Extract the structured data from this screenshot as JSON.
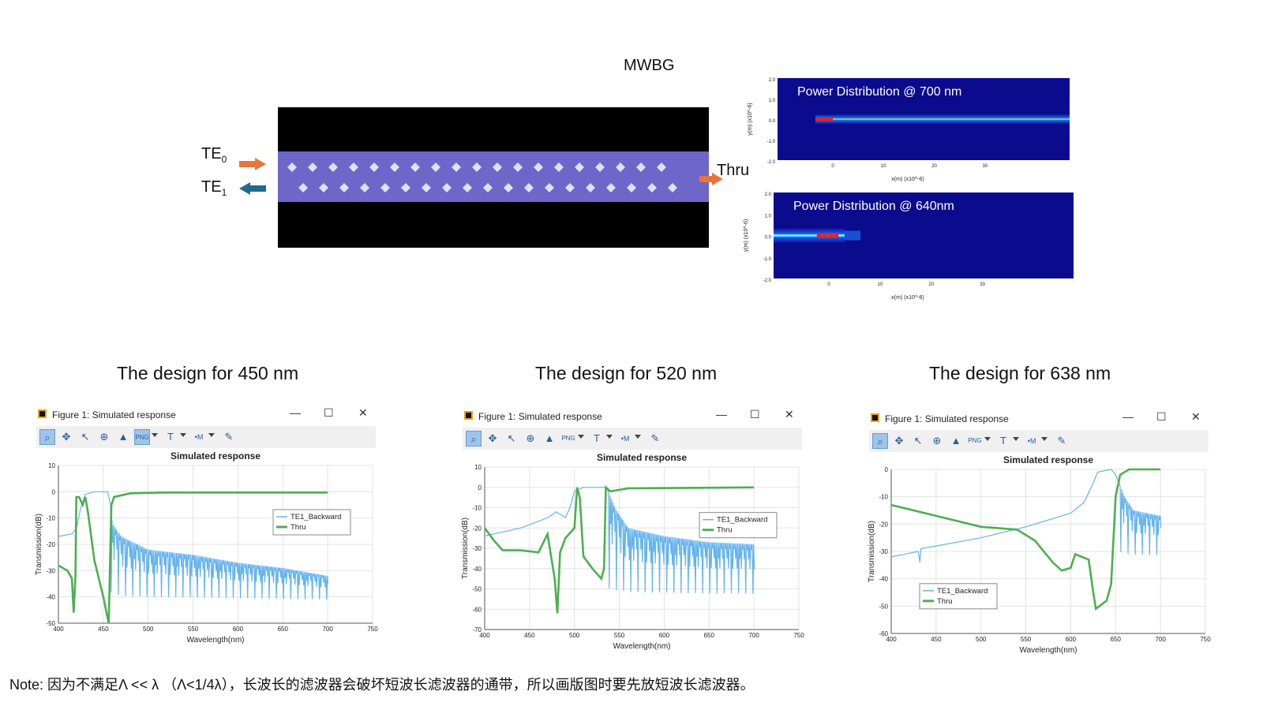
{
  "diagram": {
    "title": "MWBG",
    "input_mode": {
      "base": "TE",
      "sub": "0"
    },
    "output_mode": {
      "base": "TE",
      "sub": "1"
    },
    "thru_label": "Thru",
    "colors": {
      "cladding": "#000000",
      "core": "#6f66c9",
      "holes": "#dde2f5",
      "arrow_in": "#e8743b",
      "arrow_back": "#1f6a8c"
    }
  },
  "power_maps": [
    {
      "title": "Power Distribution @ 700 nm",
      "y_ticks": [
        "2.0",
        "1.0",
        "0.0",
        "-1.0",
        "-2.0"
      ],
      "x_ticks": [
        "0",
        "10",
        "20",
        "30"
      ],
      "y_label": "y(m) (x10^-6)",
      "x_label": "x(m) (x10^-6)"
    },
    {
      "title": "Power Distribution @ 640nm",
      "y_ticks": [
        "2.0",
        "1.0",
        "0.0",
        "-1.0",
        "-2.0"
      ],
      "x_ticks": [
        "0",
        "10",
        "20",
        "30"
      ],
      "y_label": "y(m) (x10^-6)",
      "x_label": "x(m) (x10^-6)"
    }
  ],
  "designs": [
    {
      "title": "The design for 450 nm"
    },
    {
      "title": "The design for 520 nm"
    },
    {
      "title": "The design for 638 nm"
    }
  ],
  "figure_window": {
    "title": "Figure 1: Simulated response",
    "minimize": "—",
    "maximize": "☐",
    "close": "✕",
    "toolbar_icons": [
      "zoom-icon",
      "pan-icon",
      "pointer-icon",
      "zoom-box-icon",
      "mountain-icon",
      "png-export-icon",
      "text-icon",
      "marker-icon",
      "pencil-icon"
    ],
    "toolbar_labels": {
      "png": "PNG",
      "text": "T",
      "marker": "M"
    }
  },
  "chart_data": [
    {
      "type": "line",
      "title": "Simulated response",
      "xlabel": "Wavelength(nm)",
      "ylabel": "Transmission(dB)",
      "xlim": [
        400,
        750
      ],
      "ylim": [
        -50,
        10
      ],
      "x_ticks": [
        "400",
        "450",
        "500",
        "550",
        "600",
        "650",
        "700",
        "750"
      ],
      "y_ticks": [
        "10",
        "0",
        "-10",
        "-20",
        "-30",
        "-40",
        "-50"
      ],
      "grid": true,
      "legend_position": "upper-right",
      "series": [
        {
          "name": "TE1_Backward",
          "color": "#66b3ee",
          "points": [
            [
              400,
              -17
            ],
            [
              415,
              -16
            ],
            [
              420,
              -14
            ],
            [
              425,
              -6
            ],
            [
              430,
              -1
            ],
            [
              440,
              0
            ],
            [
              455,
              0
            ],
            [
              458,
              -5
            ],
            [
              460,
              -12
            ],
            [
              470,
              -17
            ],
            [
              500,
              -22
            ],
            [
              550,
              -24
            ],
            [
              600,
              -27
            ],
            [
              650,
              -29
            ],
            [
              700,
              -32
            ]
          ],
          "ripple": {
            "start": 458,
            "end": 700,
            "dips_to": -42
          }
        },
        {
          "name": "Thru",
          "color": "#4caf50",
          "points": [
            [
              400,
              -28
            ],
            [
              410,
              -30
            ],
            [
              415,
              -33
            ],
            [
              417,
              -46
            ],
            [
              419,
              -32
            ],
            [
              420,
              -2
            ],
            [
              423,
              -2
            ],
            [
              427,
              -5
            ],
            [
              430,
              -2
            ],
            [
              433,
              -8
            ],
            [
              440,
              -26
            ],
            [
              450,
              -40
            ],
            [
              456,
              -50
            ],
            [
              459,
              -5
            ],
            [
              462,
              -2
            ],
            [
              480,
              -0.6
            ],
            [
              520,
              -0.3
            ],
            [
              700,
              -0.3
            ]
          ]
        }
      ]
    },
    {
      "type": "line",
      "title": "Simulated response",
      "xlabel": "Wavelength(nm)",
      "ylabel": "Transmission(dB)",
      "xlim": [
        400,
        750
      ],
      "ylim": [
        -70,
        10
      ],
      "x_ticks": [
        "400",
        "450",
        "500",
        "550",
        "600",
        "650",
        "700",
        "750"
      ],
      "y_ticks": [
        "10",
        "0",
        "-10",
        "-20",
        "-30",
        "-40",
        "-50",
        "-60",
        "-70"
      ],
      "grid": true,
      "legend_position": "upper-right",
      "series": [
        {
          "name": "TE1_Backward",
          "color": "#66b3ee",
          "points": [
            [
              400,
              -24
            ],
            [
              440,
              -20
            ],
            [
              470,
              -15
            ],
            [
              480,
              -12
            ],
            [
              490,
              -15
            ],
            [
              495,
              -10
            ],
            [
              500,
              -2
            ],
            [
              510,
              0
            ],
            [
              535,
              0
            ],
            [
              538,
              -2
            ],
            [
              545,
              -10
            ],
            [
              560,
              -20
            ],
            [
              600,
              -24
            ],
            [
              650,
              -27
            ],
            [
              700,
              -28
            ]
          ],
          "ripple": {
            "start": 538,
            "end": 700,
            "dips_to": -55
          }
        },
        {
          "name": "Thru",
          "color": "#4caf50",
          "points": [
            [
              400,
              -20
            ],
            [
              410,
              -26
            ],
            [
              420,
              -31
            ],
            [
              440,
              -31
            ],
            [
              460,
              -32
            ],
            [
              470,
              -23
            ],
            [
              478,
              -45
            ],
            [
              481,
              -62
            ],
            [
              484,
              -32
            ],
            [
              490,
              -25
            ],
            [
              500,
              -20
            ],
            [
              503,
              0
            ],
            [
              506,
              -5
            ],
            [
              510,
              -34
            ],
            [
              520,
              -40
            ],
            [
              530,
              -45
            ],
            [
              533,
              -40
            ],
            [
              535,
              0
            ],
            [
              540,
              -2
            ],
            [
              560,
              -0.5
            ],
            [
              700,
              0
            ]
          ]
        }
      ]
    },
    {
      "type": "line",
      "title": "Simulated response",
      "xlabel": "Wavelength(nm)",
      "ylabel": "Transmission(dB)",
      "xlim": [
        400,
        750
      ],
      "ylim": [
        -60,
        0
      ],
      "x_ticks": [
        "400",
        "450",
        "500",
        "550",
        "600",
        "650",
        "700",
        "750"
      ],
      "y_ticks": [
        "0",
        "-10",
        "-20",
        "-30",
        "-40",
        "-50",
        "-60"
      ],
      "grid": true,
      "legend_position": "lower-left",
      "series": [
        {
          "name": "TE1_Backward",
          "color": "#66b3ee",
          "points": [
            [
              400,
              -32
            ],
            [
              430,
              -30
            ],
            [
              432,
              -34
            ],
            [
              433,
              -29
            ],
            [
              450,
              -28
            ],
            [
              500,
              -25
            ],
            [
              550,
              -21
            ],
            [
              600,
              -16
            ],
            [
              615,
              -12
            ],
            [
              625,
              -5
            ],
            [
              630,
              -1
            ],
            [
              645,
              0
            ],
            [
              650,
              -2
            ],
            [
              655,
              -6
            ],
            [
              660,
              -10
            ],
            [
              670,
              -15
            ],
            [
              700,
              -17
            ]
          ],
          "ripple": {
            "start": 655,
            "end": 700,
            "dips_to": -33
          }
        },
        {
          "name": "Thru",
          "color": "#4caf50",
          "points": [
            [
              400,
              -13
            ],
            [
              450,
              -17
            ],
            [
              500,
              -21
            ],
            [
              540,
              -22
            ],
            [
              560,
              -26
            ],
            [
              580,
              -34
            ],
            [
              590,
              -37
            ],
            [
              600,
              -36
            ],
            [
              605,
              -31
            ],
            [
              620,
              -33
            ],
            [
              625,
              -45
            ],
            [
              628,
              -51
            ],
            [
              640,
              -48
            ],
            [
              645,
              -42
            ],
            [
              650,
              -10
            ],
            [
              655,
              -2
            ],
            [
              665,
              0
            ],
            [
              700,
              0
            ]
          ]
        }
      ]
    }
  ],
  "note": "Note: 因为不满足Λ << λ （Λ<1/4λ），长波长的滤波器会破坏短波长滤波器的通带，所以画版图时要先放短波长滤波器。"
}
